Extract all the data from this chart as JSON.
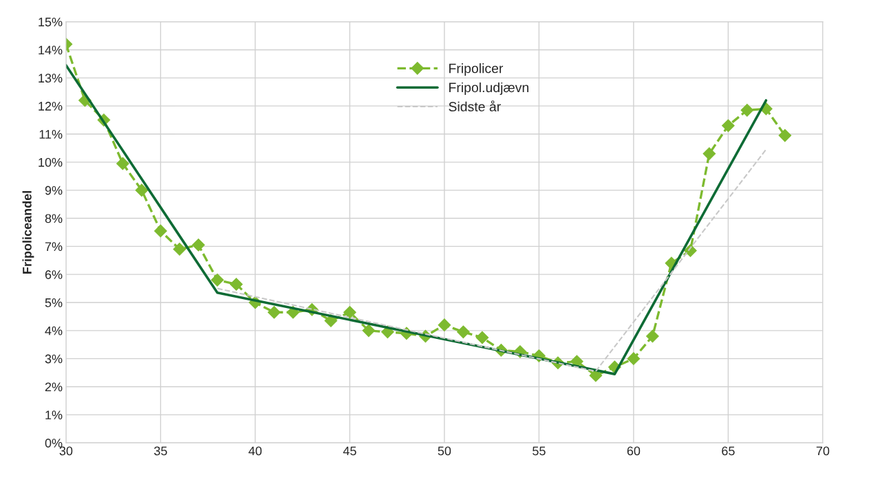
{
  "chart_data": {
    "type": "line",
    "ylabel": "Fripoliceandel",
    "xlim": [
      30,
      70
    ],
    "xticks": [
      30,
      35,
      40,
      45,
      50,
      55,
      60,
      65,
      70
    ],
    "ylim": [
      0,
      15
    ],
    "yticks": [
      {
        "value": 0,
        "label": "0%"
      },
      {
        "value": 1,
        "label": "1%"
      },
      {
        "value": 2,
        "label": "2%"
      },
      {
        "value": 3,
        "label": "3%"
      },
      {
        "value": 4,
        "label": "4%"
      },
      {
        "value": 5,
        "label": "5%"
      },
      {
        "value": 6,
        "label": "6%"
      },
      {
        "value": 7,
        "label": "7%"
      },
      {
        "value": 8,
        "label": "8%"
      },
      {
        "value": 9,
        "label": "9%"
      },
      {
        "value": 10,
        "label": "10%"
      },
      {
        "value": 11,
        "label": "11%"
      },
      {
        "value": 12,
        "label": "12%"
      },
      {
        "value": 13,
        "label": "13%"
      },
      {
        "value": 14,
        "label": "14%"
      },
      {
        "value": 15,
        "label": "15%"
      }
    ],
    "grid": true,
    "legend": "top center",
    "series": [
      {
        "name": "Fripolicer",
        "color": "#7dba2f",
        "marker": "diamond",
        "line_style": "dashed",
        "x": [
          30,
          31,
          32,
          33,
          34,
          35,
          36,
          37,
          38,
          39,
          40,
          41,
          42,
          43,
          44,
          45,
          46,
          47,
          48,
          49,
          50,
          51,
          52,
          53,
          54,
          55,
          56,
          57,
          58,
          59,
          60,
          61,
          62,
          63,
          64,
          65,
          66,
          67,
          68
        ],
        "values": [
          14.2,
          12.2,
          11.5,
          9.95,
          9.0,
          7.55,
          6.9,
          7.05,
          5.8,
          5.65,
          5.0,
          4.65,
          4.65,
          4.75,
          4.35,
          4.65,
          4.0,
          3.95,
          3.9,
          3.8,
          4.2,
          3.95,
          3.75,
          3.3,
          3.25,
          3.1,
          2.85,
          2.9,
          2.4,
          2.7,
          3.0,
          3.8,
          6.4,
          6.85,
          10.3,
          11.3,
          11.85,
          11.9,
          10.95
        ]
      },
      {
        "name": "Fripol.udjævn",
        "color": "#0e6b35",
        "marker": "none",
        "line_style": "solid",
        "x": [
          30,
          38,
          59,
          67
        ],
        "values": [
          13.45,
          5.35,
          2.45,
          12.2
        ]
      },
      {
        "name": "Sidste år",
        "color": "#c8c8c8",
        "marker": "none",
        "line_style": "dashed",
        "x": [
          38,
          58,
          67
        ],
        "values": [
          5.5,
          2.55,
          10.45
        ]
      }
    ]
  }
}
